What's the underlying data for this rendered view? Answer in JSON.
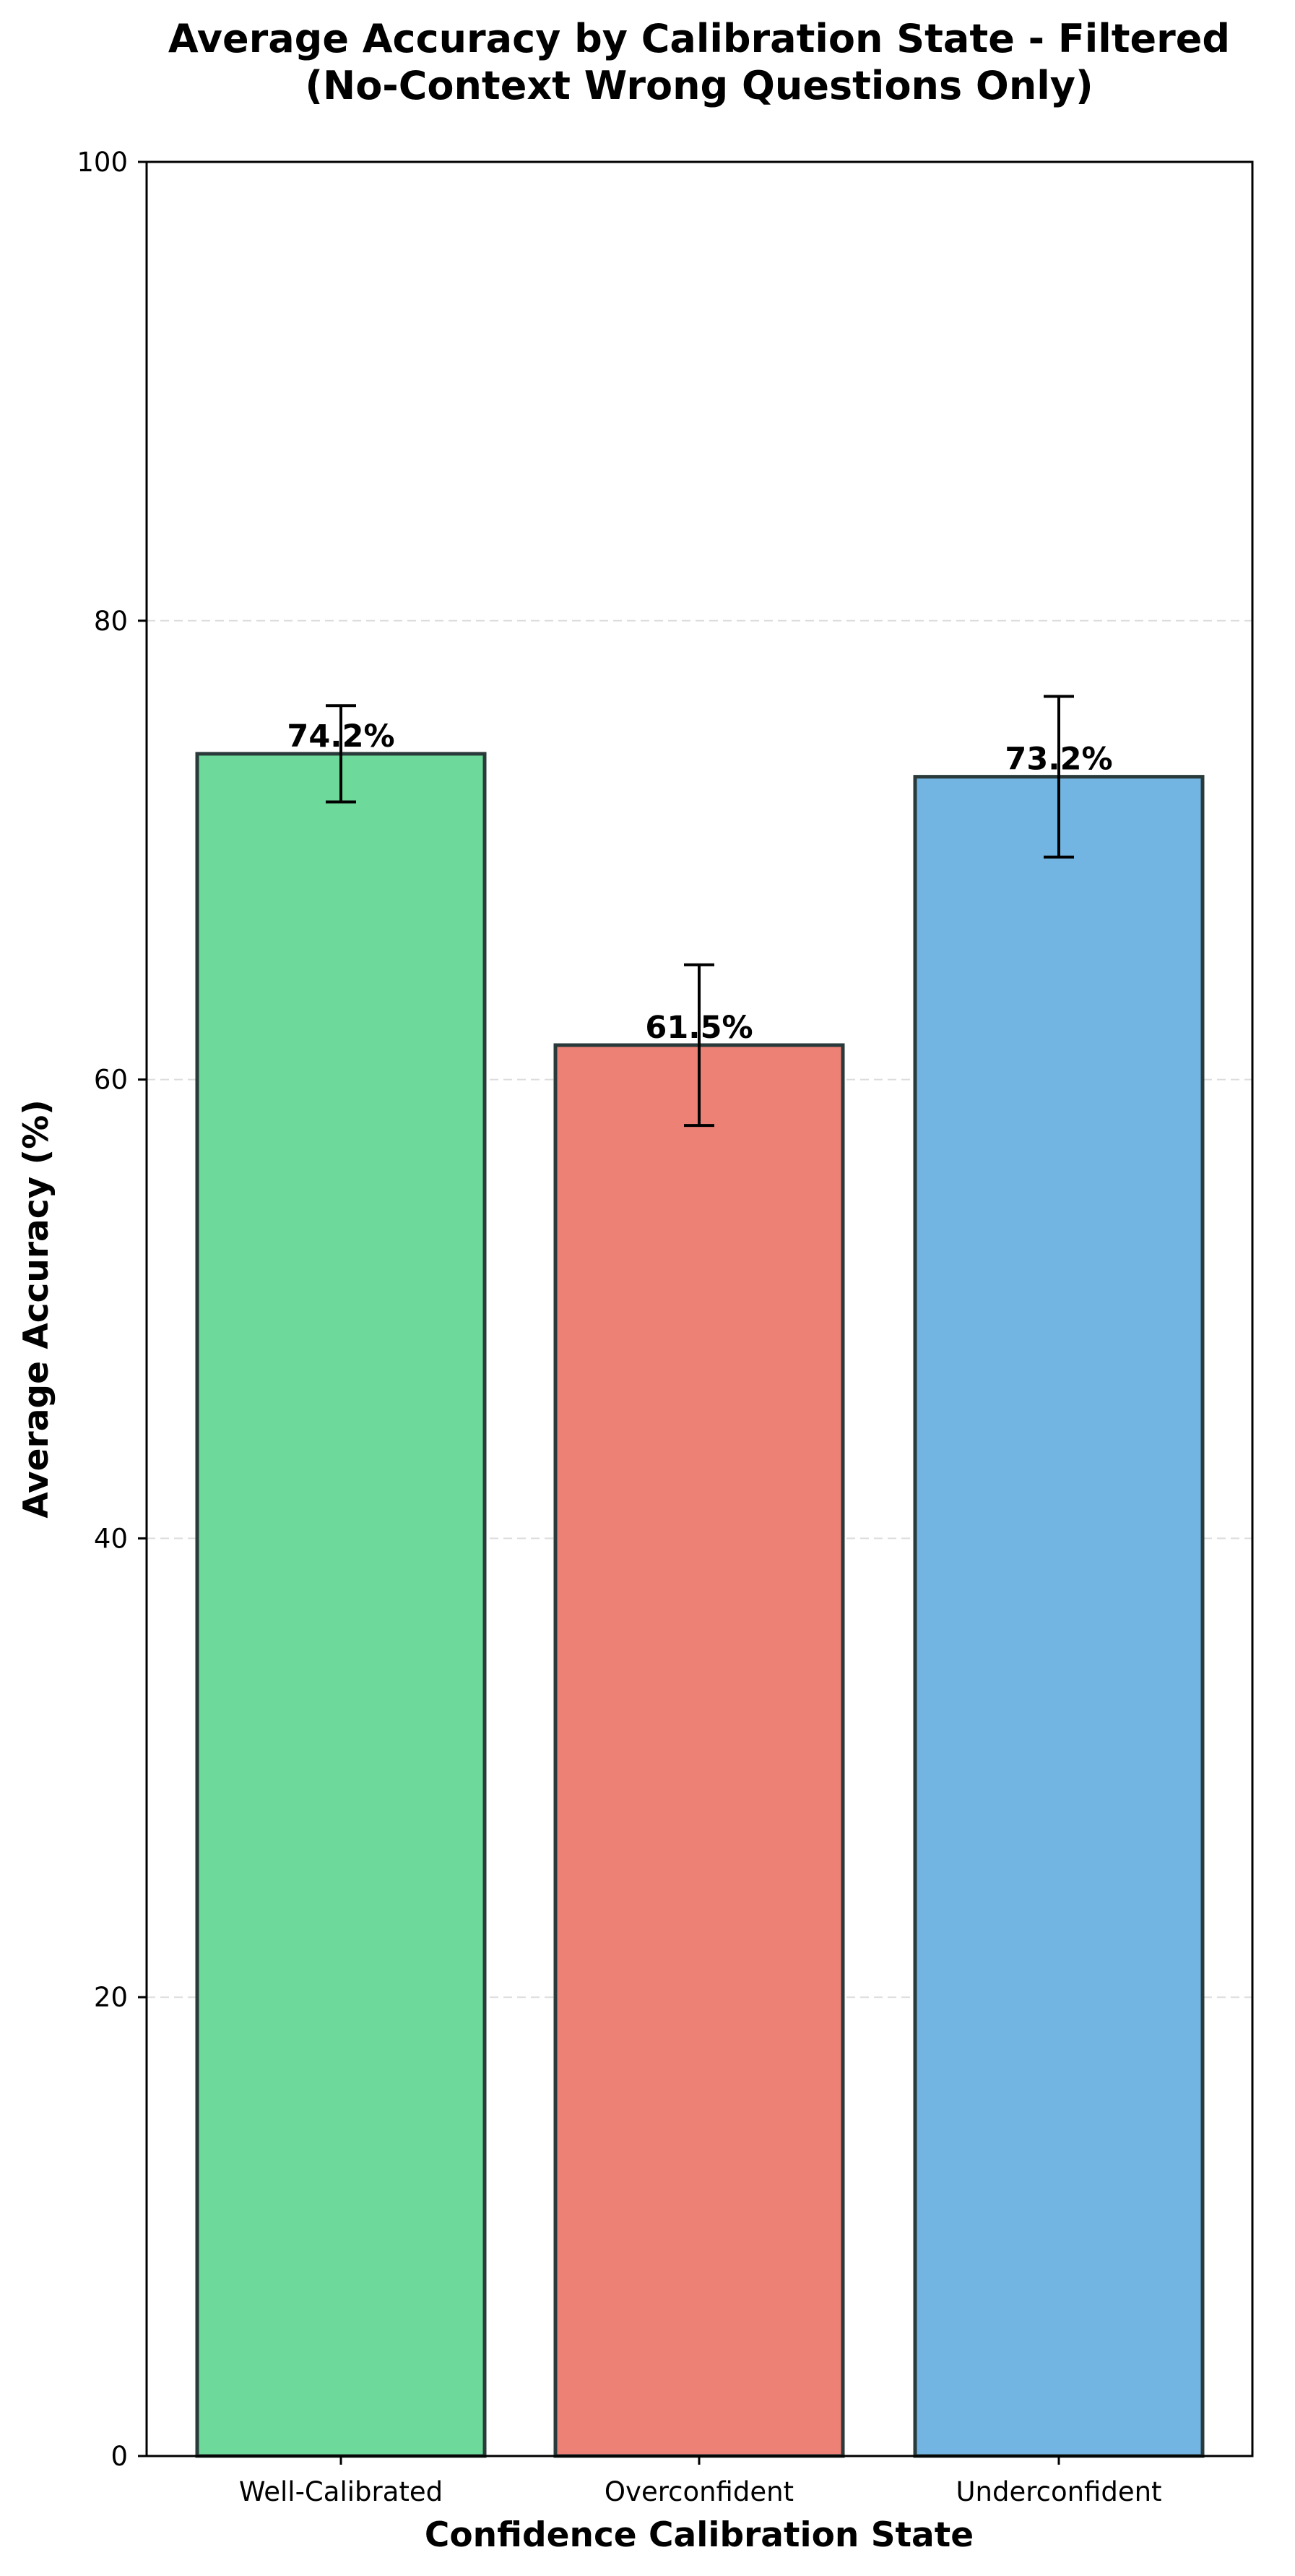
{
  "chart_data": {
    "type": "bar",
    "title_line1": "Average Accuracy by Calibration State - Filtered",
    "title_line2": "(No-Context Wrong Questions Only)",
    "xlabel": "Confidence Calibration State",
    "ylabel": "Average Accuracy (%)",
    "categories": [
      "Well-Calibrated",
      "Overconfident",
      "Underconfident"
    ],
    "values": [
      74.2,
      61.5,
      73.2
    ],
    "value_labels": [
      "74.2%",
      "61.5%",
      "73.2%"
    ],
    "error_low": [
      72.1,
      58.0,
      69.7
    ],
    "error_high": [
      76.3,
      65.0,
      76.7
    ],
    "colors": [
      "#6dd99a",
      "#ed8176",
      "#72b5e3"
    ],
    "ylim": [
      0,
      100
    ],
    "yticks": [
      0,
      20,
      40,
      60,
      80,
      100
    ],
    "ytick_labels": [
      "0",
      "20",
      "40",
      "60",
      "80",
      "100"
    ],
    "grid": "horizontal dashed",
    "legend": "none"
  }
}
